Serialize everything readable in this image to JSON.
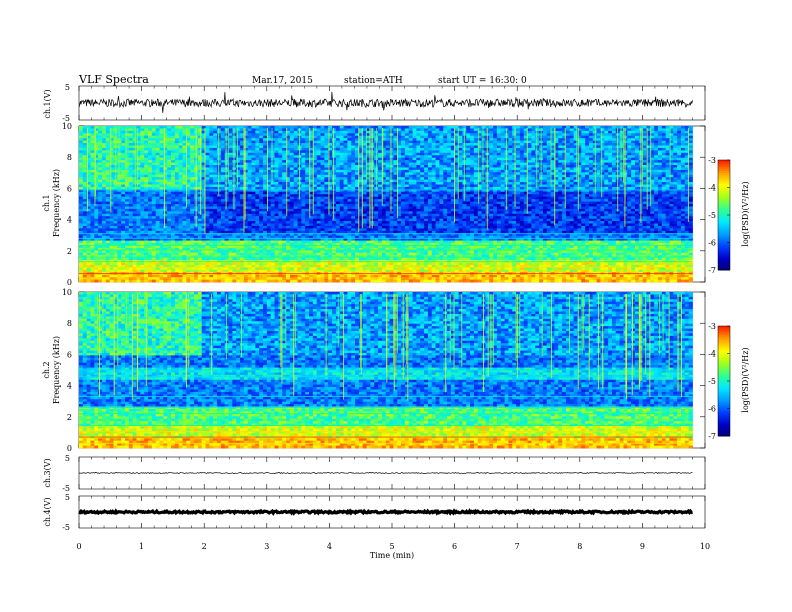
{
  "header": {
    "title": "VLF  Spectra",
    "date": "Mar.17, 2015",
    "station": "station=ATH",
    "start": "start  UT  =    16:30: 0"
  },
  "colors": {
    "spectro_stops": [
      "#000070",
      "#0000c8",
      "#0040ff",
      "#00a0ff",
      "#00e8ff",
      "#30ff90",
      "#a0ff20",
      "#ffff00",
      "#ffa000",
      "#ff2000",
      "#ffffff"
    ]
  },
  "chart_data": [
    {
      "id": "ch1_waveform",
      "type": "line",
      "ylabel": "ch.1(V)",
      "ylim": [
        -5,
        5
      ],
      "yticks": [
        "5",
        "-5"
      ],
      "xlim": [
        0,
        10
      ],
      "description_level": 0,
      "noise_amplitude": 1.2
    },
    {
      "id": "ch1_spectrogram",
      "type": "heatmap",
      "ylabel": "ch.1",
      "ylabel2": "Frequency  (kHz)",
      "ylim": [
        0,
        10
      ],
      "yticks": [
        "0",
        "2",
        "4",
        "6",
        "8",
        "10"
      ],
      "xlim": [
        0,
        9.8
      ],
      "colorbar": {
        "label": "log(PSD)(V²/Hz)",
        "range": [
          -7,
          -3
        ],
        "ticks": [
          "-3",
          "-4",
          "-5",
          "-6",
          "-7"
        ]
      }
    },
    {
      "id": "ch2_spectrogram",
      "type": "heatmap",
      "ylabel": "ch.2",
      "ylabel2": "Frequency  (kHz)",
      "ylim": [
        0,
        10
      ],
      "yticks": [
        "0",
        "2",
        "4",
        "6",
        "8",
        "10"
      ],
      "xlim": [
        0,
        9.8
      ],
      "colorbar": {
        "label": "log(PSD)(V²/Hz)",
        "range": [
          -7,
          -3
        ],
        "ticks": [
          "-3",
          "-4",
          "-5",
          "-6",
          "-7"
        ]
      }
    },
    {
      "id": "ch3_waveform",
      "type": "line",
      "ylabel": "ch.3(V)",
      "ylim": [
        -5,
        5
      ],
      "yticks": [
        "5",
        "-5"
      ],
      "level": 0,
      "noise_amplitude": 0.15
    },
    {
      "id": "ch4_waveform",
      "type": "line",
      "ylabel": "ch.4(V)",
      "ylim": [
        -5,
        5
      ],
      "yticks": [
        "5",
        "-5"
      ],
      "level": 0,
      "noise_amplitude": 0.3
    }
  ],
  "xaxis": {
    "label": "Time  (min)",
    "range": [
      0,
      10
    ],
    "ticks": [
      "0",
      "1",
      "2",
      "3",
      "4",
      "5",
      "6",
      "7",
      "8",
      "9",
      "10"
    ]
  }
}
